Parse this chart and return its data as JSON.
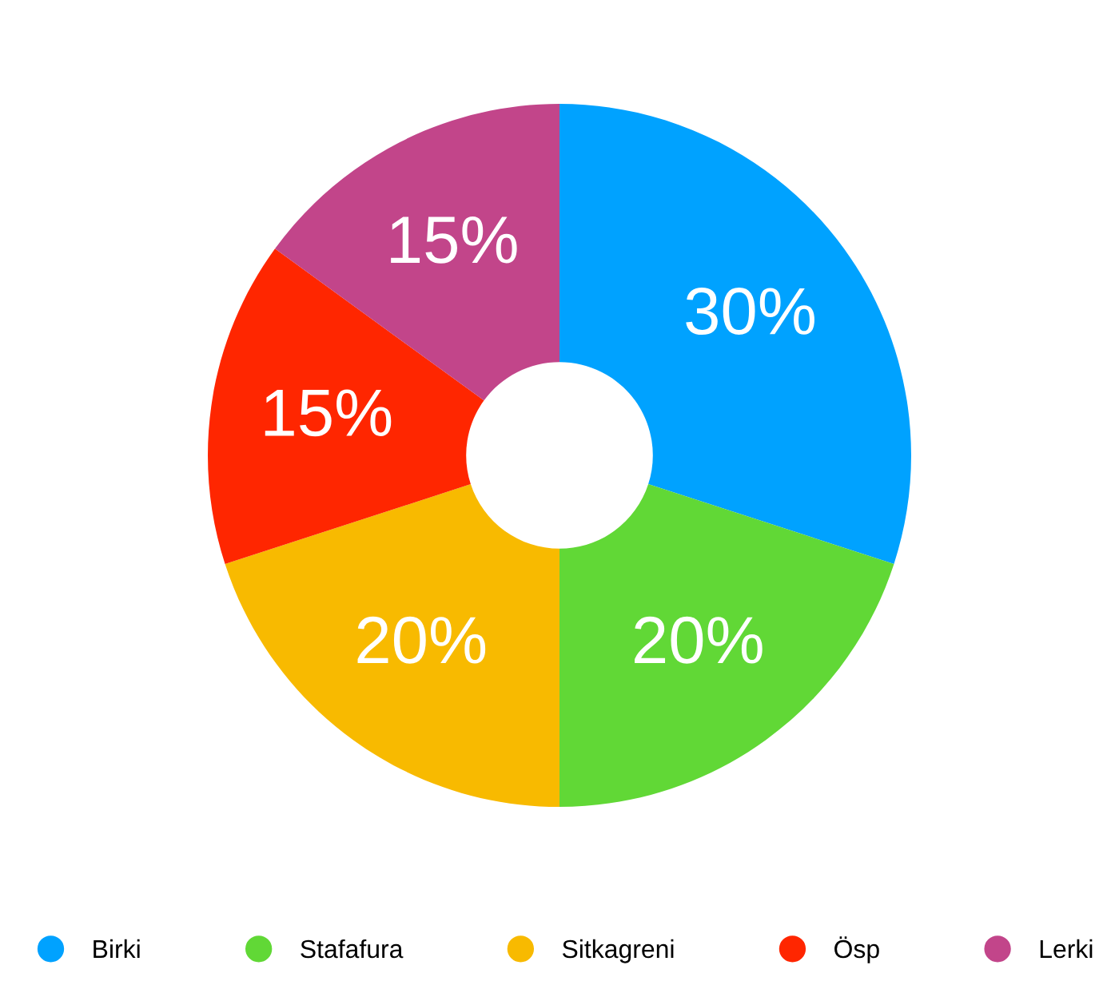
{
  "chart_data": {
    "type": "donut",
    "categories": [
      "Birki",
      "Stafafura",
      "Sitkagreni",
      "Ösp",
      "Lerki"
    ],
    "values": [
      30,
      20,
      20,
      15,
      15
    ],
    "colors": [
      "#00a2ff",
      "#61d836",
      "#f8ba00",
      "#ff2600",
      "#c2458a"
    ],
    "value_labels": [
      "30%",
      "20%",
      "20%",
      "15%",
      "15%"
    ],
    "legend": "bottom"
  }
}
